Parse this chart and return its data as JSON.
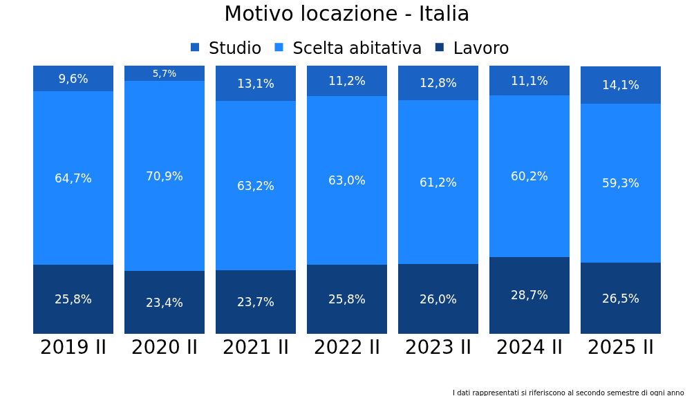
{
  "chart_data": {
    "type": "bar",
    "title": "Motivo locazione - Italia",
    "stacked": true,
    "legend": "top",
    "categories": [
      "2019 II",
      "2020 II",
      "2021 II",
      "2022 II",
      "2023 II",
      "2024 II",
      "2025 II"
    ],
    "series": [
      {
        "name": "Lavoro",
        "color": "#0f3f7d",
        "values": [
          25.8,
          23.4,
          23.7,
          25.8,
          26.0,
          28.7,
          26.5
        ],
        "value_labels": [
          "25,8%",
          "23,4%",
          "23,7%",
          "25,8%",
          "26,0%",
          "28,7%",
          "26,5%"
        ]
      },
      {
        "name": "Scelta abitativa",
        "color": "#1e86ff",
        "values": [
          64.7,
          70.9,
          63.2,
          63.0,
          61.2,
          60.2,
          59.3
        ],
        "value_labels": [
          "64,7%",
          "70,9%",
          "63,2%",
          "63,0%",
          "61,2%",
          "60,2%",
          "59,3%"
        ]
      },
      {
        "name": "Studio",
        "color": "#1a63c4",
        "values": [
          9.6,
          5.7,
          13.1,
          11.2,
          12.8,
          11.1,
          14.1
        ],
        "value_labels": [
          "9,6%",
          "5,7%",
          "13,1%",
          "11,2%",
          "12,8%",
          "11,1%",
          "14,1%"
        ]
      }
    ],
    "annotations": [
      "I dati rappresentati si riferiscono al secondo semestre di ogni anno"
    ]
  }
}
